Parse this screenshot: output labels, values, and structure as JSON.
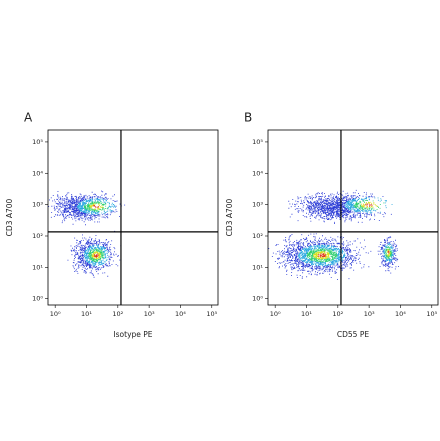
{
  "chart_data": [
    {
      "type": "scatter",
      "title": "A",
      "xlabel": "Isotype PE",
      "ylabel": "CD3 A700",
      "log_x": true,
      "log_y": true,
      "xlim": [
        0.59,
        158000
      ],
      "ylim": [
        0.63,
        240000
      ],
      "xticks": [
        {
          "value": 1,
          "label": "10⁰"
        },
        {
          "value": 10,
          "label": "10¹"
        },
        {
          "value": 100,
          "label": "10²"
        },
        {
          "value": 1000,
          "label": "10³"
        },
        {
          "value": 10000,
          "label": "10⁴"
        },
        {
          "value": 100000,
          "label": "10⁵"
        }
      ],
      "yticks": [
        {
          "value": 1,
          "label": "10⁰"
        },
        {
          "value": 10,
          "label": "10¹"
        },
        {
          "value": 100,
          "label": "10²"
        },
        {
          "value": 1000,
          "label": "10³"
        },
        {
          "value": 10000,
          "label": "10⁴"
        },
        {
          "value": 100000,
          "label": "10⁵"
        }
      ],
      "gate_x": 126,
      "gate_y": 135,
      "populations": [
        {
          "xrange": [
            0.6,
            100
          ],
          "yrange": [
            300,
            2500
          ],
          "peak": [
            20,
            900
          ]
        },
        {
          "xrange": [
            3,
            80
          ],
          "yrange": [
            6,
            100
          ],
          "peak": [
            20,
            25
          ]
        }
      ]
    },
    {
      "type": "scatter",
      "title": "B",
      "xlabel": "CD55 PE",
      "ylabel": "CD3 A700",
      "log_x": true,
      "log_y": true,
      "xlim": [
        0.59,
        158000
      ],
      "ylim": [
        0.63,
        240000
      ],
      "xticks": [
        {
          "value": 1,
          "label": "10⁰"
        },
        {
          "value": 10,
          "label": "10¹"
        },
        {
          "value": 100,
          "label": "10²"
        },
        {
          "value": 1000,
          "label": "10³"
        },
        {
          "value": 10000,
          "label": "10⁴"
        },
        {
          "value": 100000,
          "label": "10⁵"
        }
      ],
      "yticks": [
        {
          "value": 1,
          "label": "10⁰"
        },
        {
          "value": 10,
          "label": "10¹"
        },
        {
          "value": 100,
          "label": "10²"
        },
        {
          "value": 1000,
          "label": "10³"
        },
        {
          "value": 10000,
          "label": "10⁴"
        },
        {
          "value": 100000,
          "label": "10⁵"
        }
      ],
      "gate_x": 126,
      "gate_y": 135,
      "populations": [
        {
          "xrange": [
            4,
            3200
          ],
          "yrange": [
            300,
            2500
          ],
          "peak": [
            1000,
            1000
          ]
        },
        {
          "xrange": [
            1,
            600
          ],
          "yrange": [
            6,
            100
          ],
          "peak": [
            30,
            25
          ]
        },
        {
          "xrange": [
            2000,
            8000
          ],
          "yrange": [
            8,
            100
          ],
          "peak": [
            4000,
            30
          ]
        }
      ]
    }
  ]
}
